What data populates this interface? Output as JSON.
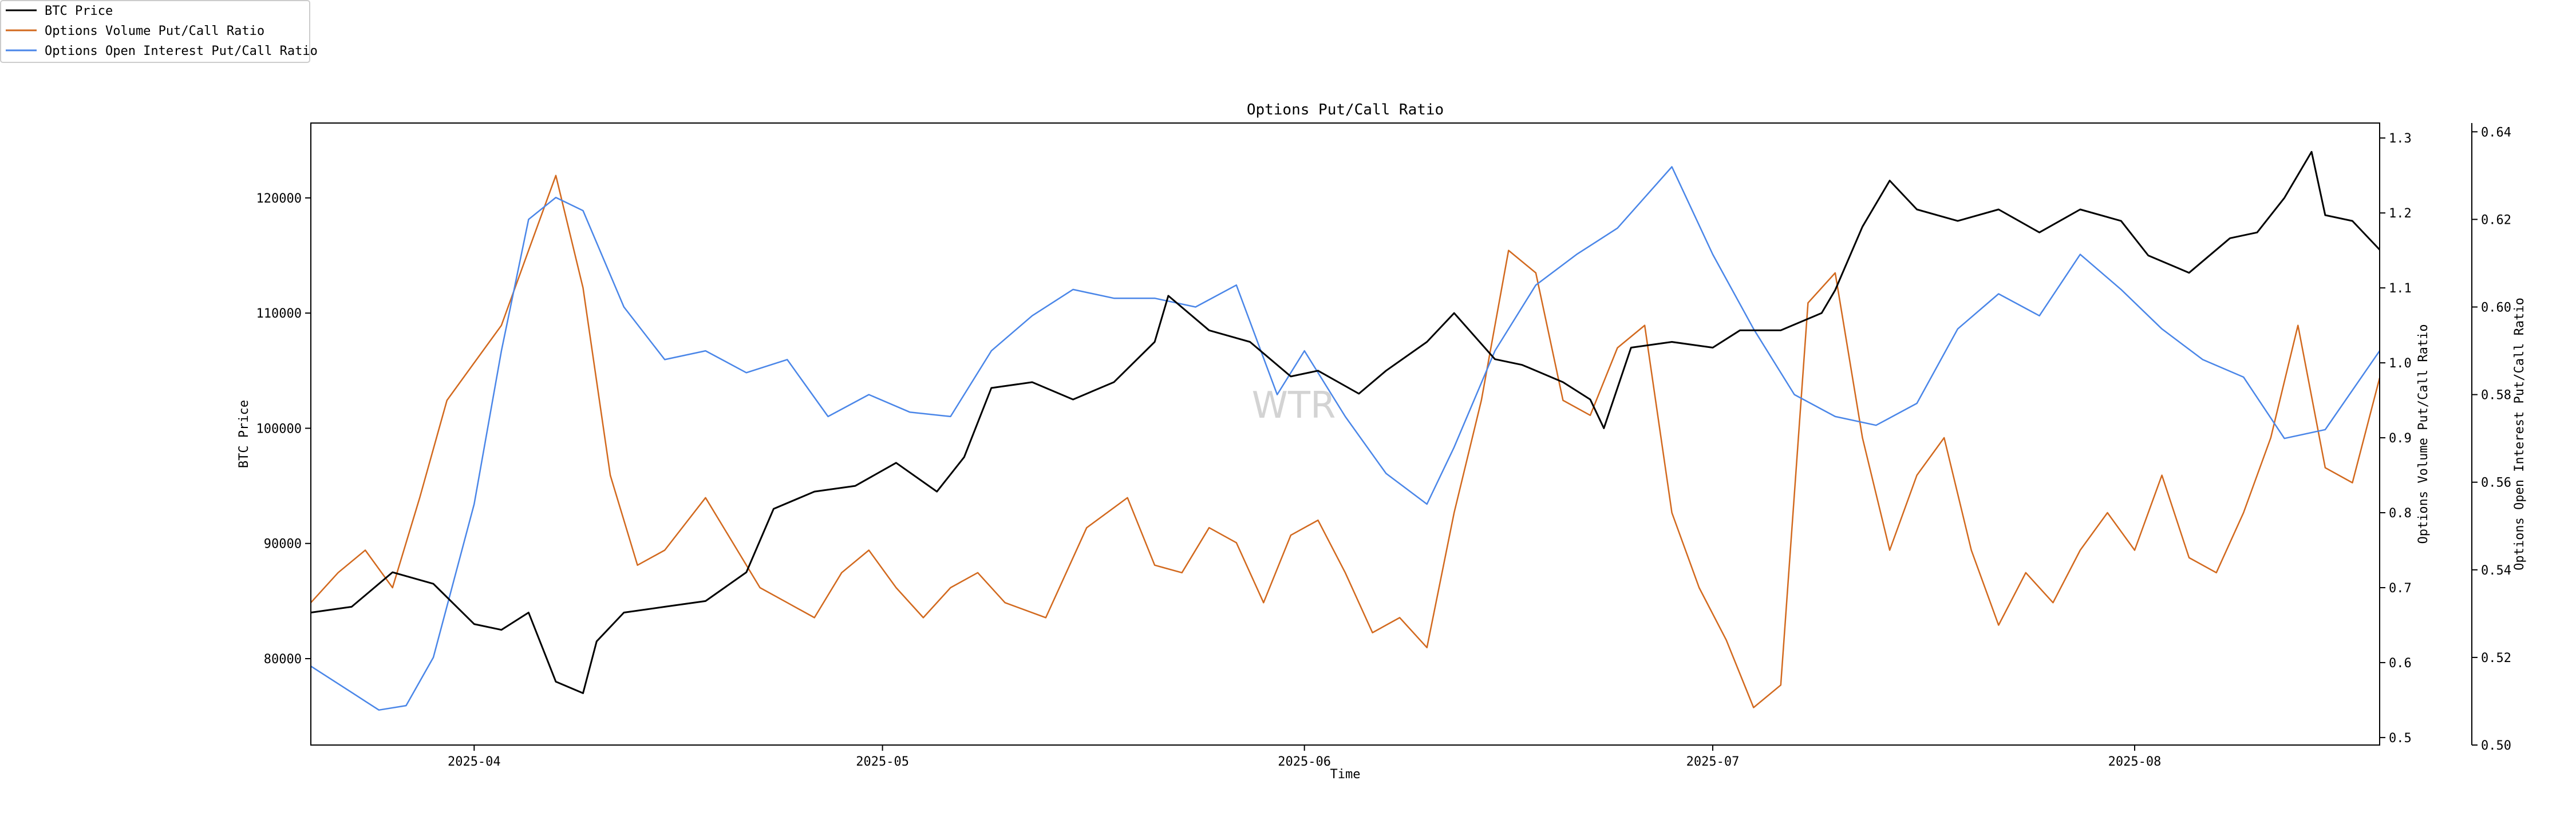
{
  "chart_data": {
    "type": "line",
    "title": "Options Put/Call Ratio",
    "xlabel": "Time",
    "watermark": "WTR",
    "x_range": [
      "2025-03-20",
      "2025-08-19"
    ],
    "x_ticks": [
      "2025-04",
      "2025-05",
      "2025-06",
      "2025-07",
      "2025-08"
    ],
    "axes": {
      "left": {
        "label": "BTC Price",
        "ylim": [
          72500,
          126500
        ],
        "ticks": [
          "80000",
          "90000",
          "100000",
          "110000",
          "120000"
        ]
      },
      "right1": {
        "label": "Options Volume Put/Call Ratio",
        "ylim": [
          0.49,
          1.32
        ],
        "ticks": [
          "0.5",
          "0.6",
          "0.7",
          "0.8",
          "0.9",
          "1.0",
          "1.1",
          "1.2",
          "1.3"
        ]
      },
      "right2": {
        "label": "Options Open Interest Put/Call Ratio",
        "ylim": [
          0.5,
          0.642
        ],
        "ticks": [
          "0.50",
          "0.52",
          "0.54",
          "0.56",
          "0.58",
          "0.60",
          "0.62",
          "0.64"
        ]
      }
    },
    "legend_position": "top-left",
    "series": [
      {
        "name": "BTC Price",
        "axis": "left",
        "color": "#000000",
        "x": [
          "2025-03-20",
          "2025-03-23",
          "2025-03-26",
          "2025-03-29",
          "2025-04-01",
          "2025-04-03",
          "2025-04-05",
          "2025-04-07",
          "2025-04-09",
          "2025-04-10",
          "2025-04-12",
          "2025-04-15",
          "2025-04-18",
          "2025-04-21",
          "2025-04-23",
          "2025-04-26",
          "2025-04-29",
          "2025-05-02",
          "2025-05-05",
          "2025-05-07",
          "2025-05-09",
          "2025-05-12",
          "2025-05-15",
          "2025-05-18",
          "2025-05-21",
          "2025-05-22",
          "2025-05-25",
          "2025-05-28",
          "2025-05-31",
          "2025-06-02",
          "2025-06-05",
          "2025-06-07",
          "2025-06-10",
          "2025-06-12",
          "2025-06-15",
          "2025-06-17",
          "2025-06-20",
          "2025-06-22",
          "2025-06-23",
          "2025-06-25",
          "2025-06-28",
          "2025-07-01",
          "2025-07-03",
          "2025-07-06",
          "2025-07-09",
          "2025-07-10",
          "2025-07-12",
          "2025-07-14",
          "2025-07-16",
          "2025-07-19",
          "2025-07-22",
          "2025-07-25",
          "2025-07-28",
          "2025-07-31",
          "2025-08-02",
          "2025-08-05",
          "2025-08-08",
          "2025-08-10",
          "2025-08-12",
          "2025-08-14",
          "2025-08-15",
          "2025-08-17",
          "2025-08-19"
        ],
        "values": [
          84000,
          84500,
          87500,
          86500,
          83000,
          82500,
          84000,
          78000,
          77000,
          81500,
          84000,
          84500,
          85000,
          87500,
          93000,
          94500,
          95000,
          97000,
          94500,
          97500,
          103500,
          104000,
          102500,
          104000,
          107500,
          111500,
          108500,
          107500,
          104500,
          105000,
          103000,
          105000,
          107500,
          110000,
          106000,
          105500,
          104000,
          102500,
          100000,
          107000,
          107500,
          107000,
          108500,
          108500,
          110000,
          112000,
          117500,
          121500,
          119000,
          118000,
          119000,
          117000,
          119000,
          118000,
          115000,
          113500,
          116500,
          117000,
          120000,
          124000,
          118500,
          118000,
          115500
        ]
      },
      {
        "name": "Options Volume Put/Call Ratio",
        "axis": "right1",
        "color": "#D2691E",
        "x": [
          "2025-03-20",
          "2025-03-22",
          "2025-03-24",
          "2025-03-26",
          "2025-03-28",
          "2025-03-30",
          "2025-04-01",
          "2025-04-03",
          "2025-04-05",
          "2025-04-07",
          "2025-04-09",
          "2025-04-11",
          "2025-04-13",
          "2025-04-15",
          "2025-04-18",
          "2025-04-20",
          "2025-04-22",
          "2025-04-24",
          "2025-04-26",
          "2025-04-28",
          "2025-04-30",
          "2025-05-02",
          "2025-05-04",
          "2025-05-06",
          "2025-05-08",
          "2025-05-10",
          "2025-05-13",
          "2025-05-16",
          "2025-05-19",
          "2025-05-21",
          "2025-05-23",
          "2025-05-25",
          "2025-05-27",
          "2025-05-29",
          "2025-05-31",
          "2025-06-02",
          "2025-06-04",
          "2025-06-06",
          "2025-06-08",
          "2025-06-10",
          "2025-06-12",
          "2025-06-14",
          "2025-06-16",
          "2025-06-18",
          "2025-06-20",
          "2025-06-22",
          "2025-06-24",
          "2025-06-26",
          "2025-06-28",
          "2025-06-30",
          "2025-07-02",
          "2025-07-04",
          "2025-07-06",
          "2025-07-08",
          "2025-07-10",
          "2025-07-12",
          "2025-07-14",
          "2025-07-16",
          "2025-07-18",
          "2025-07-20",
          "2025-07-22",
          "2025-07-24",
          "2025-07-26",
          "2025-07-28",
          "2025-07-30",
          "2025-08-01",
          "2025-08-03",
          "2025-08-05",
          "2025-08-07",
          "2025-08-09",
          "2025-08-11",
          "2025-08-13",
          "2025-08-15",
          "2025-08-17",
          "2025-08-19"
        ],
        "values": [
          0.68,
          0.72,
          0.75,
          0.7,
          0.82,
          0.95,
          1.0,
          1.05,
          1.15,
          1.25,
          1.1,
          0.85,
          0.73,
          0.75,
          0.82,
          0.76,
          0.7,
          0.68,
          0.66,
          0.72,
          0.75,
          0.7,
          0.66,
          0.7,
          0.72,
          0.68,
          0.66,
          0.78,
          0.82,
          0.73,
          0.72,
          0.78,
          0.76,
          0.68,
          0.77,
          0.79,
          0.72,
          0.64,
          0.66,
          0.62,
          0.8,
          0.95,
          1.15,
          1.12,
          0.95,
          0.93,
          1.02,
          1.05,
          0.8,
          0.7,
          0.63,
          0.54,
          0.57,
          1.08,
          1.12,
          0.9,
          0.75,
          0.85,
          0.9,
          0.75,
          0.65,
          0.72,
          0.68,
          0.75,
          0.8,
          0.75,
          0.85,
          0.74,
          0.72,
          0.8,
          0.9,
          1.05,
          0.86,
          0.84,
          0.98
        ]
      },
      {
        "name": "Options Open Interest Put/Call Ratio",
        "axis": "right2",
        "color": "#4A86E8",
        "x": [
          "2025-03-20",
          "2025-03-23",
          "2025-03-25",
          "2025-03-27",
          "2025-03-29",
          "2025-04-01",
          "2025-04-03",
          "2025-04-05",
          "2025-04-07",
          "2025-04-09",
          "2025-04-12",
          "2025-04-15",
          "2025-04-18",
          "2025-04-21",
          "2025-04-24",
          "2025-04-27",
          "2025-04-30",
          "2025-05-03",
          "2025-05-06",
          "2025-05-09",
          "2025-05-12",
          "2025-05-15",
          "2025-05-18",
          "2025-05-21",
          "2025-05-24",
          "2025-05-27",
          "2025-05-30",
          "2025-06-01",
          "2025-06-04",
          "2025-06-07",
          "2025-06-10",
          "2025-06-12",
          "2025-06-15",
          "2025-06-18",
          "2025-06-21",
          "2025-06-24",
          "2025-06-26",
          "2025-06-28",
          "2025-07-01",
          "2025-07-04",
          "2025-07-07",
          "2025-07-10",
          "2025-07-13",
          "2025-07-16",
          "2025-07-19",
          "2025-07-22",
          "2025-07-25",
          "2025-07-28",
          "2025-07-31",
          "2025-08-03",
          "2025-08-06",
          "2025-08-09",
          "2025-08-12",
          "2025-08-15",
          "2025-08-19"
        ],
        "values": [
          0.518,
          0.512,
          0.508,
          0.509,
          0.52,
          0.555,
          0.59,
          0.62,
          0.625,
          0.622,
          0.6,
          0.588,
          0.59,
          0.585,
          0.588,
          0.575,
          0.58,
          0.576,
          0.575,
          0.59,
          0.598,
          0.604,
          0.602,
          0.602,
          0.6,
          0.605,
          0.58,
          0.59,
          0.575,
          0.562,
          0.555,
          0.568,
          0.59,
          0.605,
          0.612,
          0.618,
          0.625,
          0.632,
          0.612,
          0.595,
          0.58,
          0.575,
          0.573,
          0.578,
          0.595,
          0.603,
          0.598,
          0.612,
          0.604,
          0.595,
          0.588,
          0.584,
          0.57,
          0.572,
          0.59
        ]
      }
    ]
  }
}
